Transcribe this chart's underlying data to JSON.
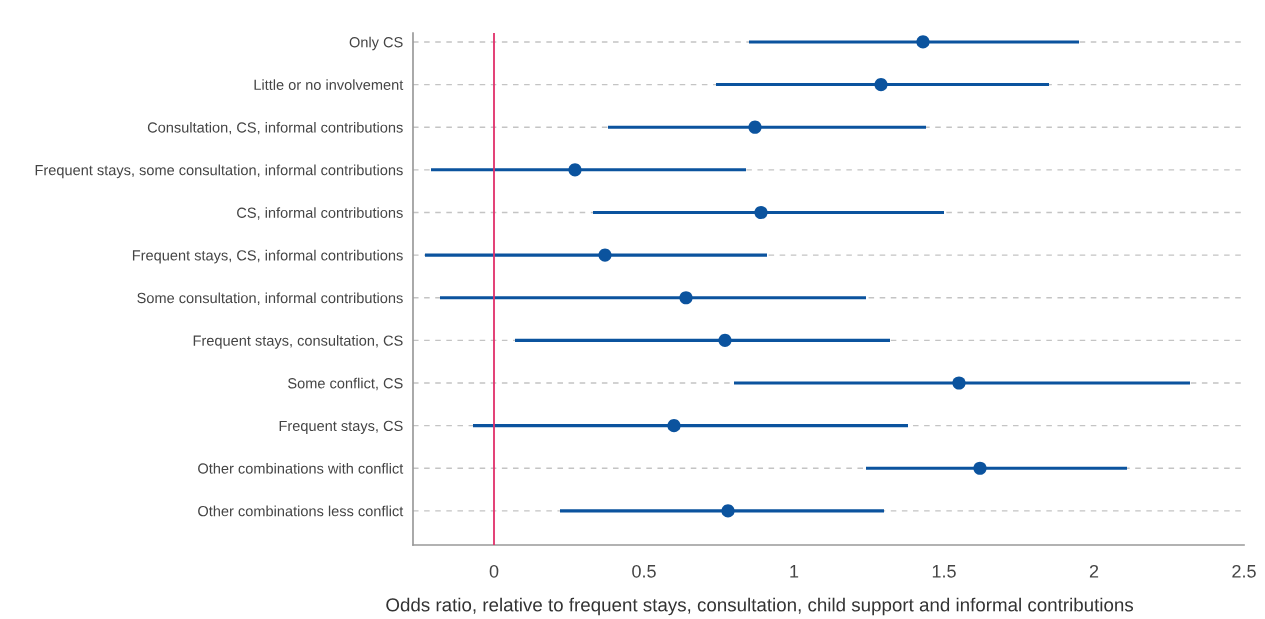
{
  "chart_data": {
    "type": "scatter",
    "orientation": "horizontal",
    "xlabel": "Odds ratio, relative to frequent stays, consultation, child support and informal contributions",
    "categories": [
      "Only CS",
      "Little or no involvement",
      "Consultation, CS, informal contributions",
      "Frequent stays, some consultation, informal contributions",
      "CS, informal contributions",
      "Frequent stays, CS, informal contributions",
      "Some consultation, informal contributions",
      "Frequent stays, consultation, CS",
      "Some conflict, CS",
      "Frequent stays, CS",
      "Other combinations with conflict",
      "Other combinations less conflict"
    ],
    "values": [
      1.43,
      1.29,
      0.87,
      0.27,
      0.89,
      0.37,
      0.64,
      0.77,
      1.55,
      0.6,
      1.62,
      0.78
    ],
    "errors": [
      [
        0.85,
        1.95
      ],
      [
        0.74,
        1.85
      ],
      [
        0.38,
        1.44
      ],
      [
        -0.21,
        0.84
      ],
      [
        0.33,
        1.5
      ],
      [
        -0.23,
        0.91
      ],
      [
        -0.18,
        1.24
      ],
      [
        0.07,
        1.32
      ],
      [
        0.8,
        2.32
      ],
      [
        -0.07,
        1.38
      ],
      [
        1.24,
        2.11
      ],
      [
        0.22,
        1.3
      ]
    ],
    "color": "#0b539e",
    "marker": "circle",
    "grid": "y",
    "xlim": [
      -0.27,
      2.5
    ],
    "xticks": [
      0,
      0.5,
      1,
      1.5,
      2,
      2.5
    ],
    "ref_lines": [
      {
        "axis": "x",
        "value": 0,
        "color": "#e0306a"
      }
    ]
  }
}
